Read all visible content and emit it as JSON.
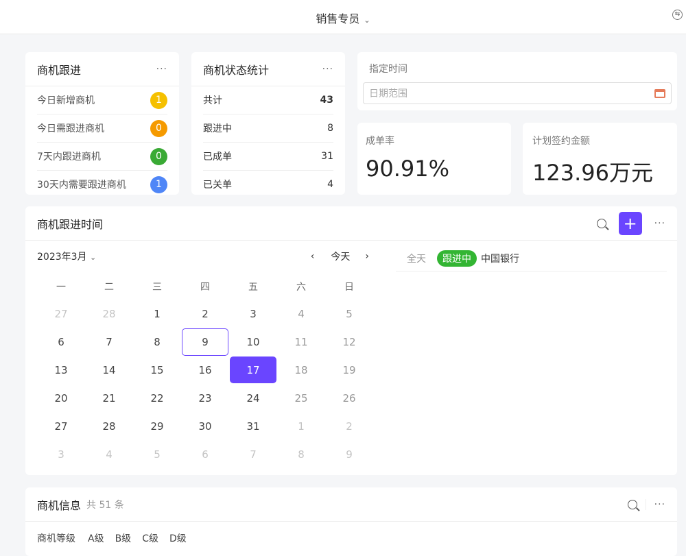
{
  "header": {
    "title": "销售专员",
    "switch_icon": "switch-icon"
  },
  "followup": {
    "title": "商机跟进",
    "items": [
      {
        "label": "今日新增商机",
        "count": "1",
        "color": "#f5c000"
      },
      {
        "label": "今日需跟进商机",
        "count": "0",
        "color": "#f59a00"
      },
      {
        "label": "7天内跟进商机",
        "count": "0",
        "color": "#3aaa35"
      },
      {
        "label": "30天内需要跟进商机",
        "count": "1",
        "color": "#4f86f7"
      }
    ]
  },
  "status": {
    "title": "商机状态统计",
    "items": [
      {
        "label": "共计",
        "value": "43"
      },
      {
        "label": "跟进中",
        "value": "8"
      },
      {
        "label": "已成单",
        "value": "31"
      },
      {
        "label": "已关单",
        "value": "4"
      }
    ]
  },
  "time": {
    "label": "指定时间",
    "placeholder": "日期范围"
  },
  "rate": {
    "label": "成单率",
    "value": "90.91%"
  },
  "amount": {
    "label": "计划签约金额",
    "value": "123.96万元"
  },
  "calendar": {
    "title": "商机跟进时间",
    "month": "2023年3月",
    "today_label": "今天",
    "weekdays": [
      "一",
      "二",
      "三",
      "四",
      "五",
      "六",
      "日"
    ],
    "weeks": [
      [
        "27",
        "28",
        "1",
        "2",
        "3",
        "4",
        "5"
      ],
      [
        "6",
        "7",
        "8",
        "9",
        "10",
        "11",
        "12"
      ],
      [
        "13",
        "14",
        "15",
        "16",
        "17",
        "18",
        "19"
      ],
      [
        "20",
        "21",
        "22",
        "23",
        "24",
        "25",
        "26"
      ],
      [
        "27",
        "28",
        "29",
        "30",
        "31",
        "1",
        "2"
      ],
      [
        "3",
        "4",
        "5",
        "6",
        "7",
        "8",
        "9"
      ]
    ],
    "today": "9",
    "selected": "17",
    "accent": "#6a45ff",
    "event": {
      "time": "全天",
      "status": "跟进中",
      "name": "中国银行",
      "status_color": "#33b533"
    }
  },
  "info": {
    "title": "商机信息",
    "count": "共 51 条",
    "filter_label": "商机等级",
    "levels": [
      "A级",
      "B级",
      "C级",
      "D级"
    ]
  }
}
